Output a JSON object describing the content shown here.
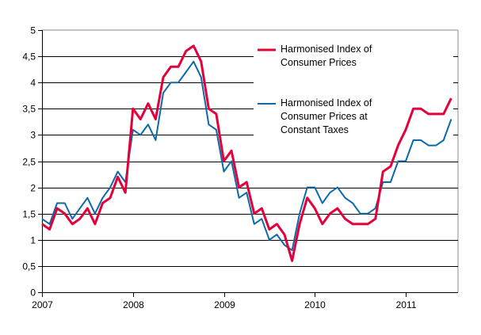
{
  "chart_data": {
    "type": "line",
    "title": "",
    "xlabel": "",
    "ylabel": "",
    "ylim": [
      0,
      5
    ],
    "yticks": [
      "0",
      "0,5",
      "1",
      "1,5",
      "2",
      "2,5",
      "3",
      "3,5",
      "4",
      "4,5",
      "5"
    ],
    "xticks": [
      "2007",
      "2008",
      "2009",
      "2010",
      "2011"
    ],
    "x_start": "2007-01",
    "x_frequency": "monthly",
    "grid": "horizontal",
    "legend_position": "top-right",
    "series": [
      {
        "name": "Harmonised Index of Consumer Prices",
        "color": "#e4003a",
        "values": [
          1.3,
          1.2,
          1.6,
          1.5,
          1.3,
          1.4,
          1.6,
          1.3,
          1.7,
          1.8,
          2.2,
          1.9,
          3.5,
          3.3,
          3.6,
          3.3,
          4.1,
          4.3,
          4.3,
          4.6,
          4.7,
          4.4,
          3.5,
          3.4,
          2.5,
          2.7,
          2.0,
          2.1,
          1.5,
          1.6,
          1.2,
          1.3,
          1.1,
          0.6,
          1.3,
          1.8,
          1.6,
          1.3,
          1.5,
          1.6,
          1.4,
          1.3,
          1.3,
          1.3,
          1.4,
          2.3,
          2.4,
          2.8,
          3.1,
          3.5,
          3.5,
          3.4,
          3.4,
          3.4,
          3.7
        ]
      },
      {
        "name": "Harmonised Index of Consumer Prices at Constant Taxes",
        "color": "#0b6aa8",
        "values": [
          1.4,
          1.3,
          1.7,
          1.7,
          1.4,
          1.6,
          1.8,
          1.5,
          1.8,
          2.0,
          2.3,
          2.1,
          3.1,
          3.0,
          3.2,
          2.9,
          3.8,
          4.0,
          4.0,
          4.2,
          4.4,
          4.1,
          3.2,
          3.1,
          2.3,
          2.5,
          1.8,
          1.9,
          1.3,
          1.4,
          1.0,
          1.1,
          0.9,
          0.8,
          1.5,
          2.0,
          2.0,
          1.7,
          1.9,
          2.0,
          1.8,
          1.7,
          1.5,
          1.5,
          1.6,
          2.1,
          2.1,
          2.5,
          2.5,
          2.9,
          2.9,
          2.8,
          2.8,
          2.9,
          3.3
        ]
      }
    ],
    "legend": {
      "line1": [
        "Harmonised Index of",
        "Consumer Prices"
      ],
      "line2": [
        "Harmonised Index of",
        "Consumer Prices at",
        "Constant Taxes"
      ]
    }
  }
}
